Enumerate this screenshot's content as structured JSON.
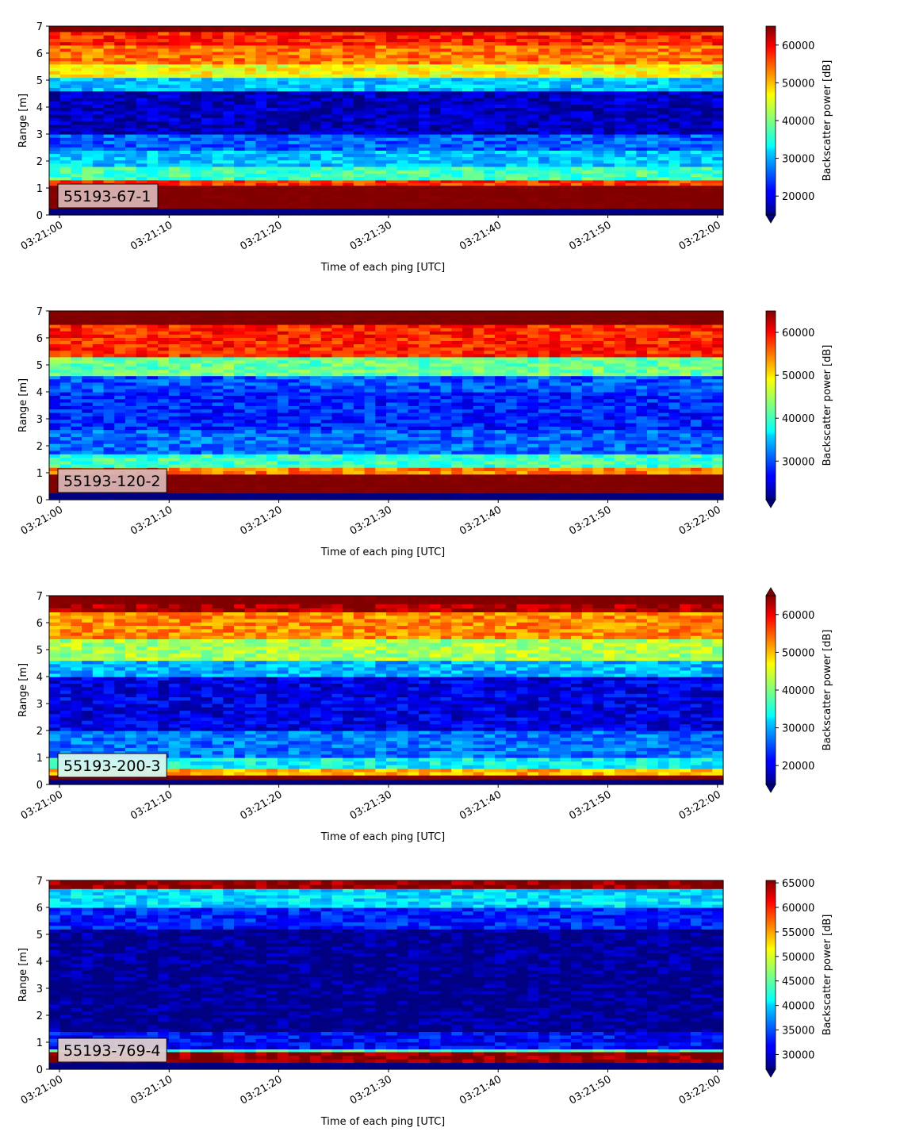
{
  "figure": {
    "colormap": "jet",
    "panel_background": "#ffffff"
  },
  "chart_data": [
    {
      "type": "heatmap",
      "label": "55193-67-1",
      "label_bg": "#d9b3b3",
      "xlabel": "Time of each ping [UTC]",
      "ylabel": "Range [m]",
      "x_ticks": [
        "03:21:00",
        "03:21:10",
        "03:21:20",
        "03:21:30",
        "03:21:40",
        "03:21:50",
        "03:22:00"
      ],
      "y_ticks": [
        "0",
        "1",
        "2",
        "3",
        "4",
        "5",
        "6",
        "7"
      ],
      "ylim": [
        0,
        7
      ],
      "colorbar": {
        "label": "Backscatter power [dB]",
        "vmin": 15000,
        "vmax": 65000,
        "ticks": [
          "20000",
          "30000",
          "40000",
          "50000",
          "60000"
        ],
        "tick_values": [
          20000,
          30000,
          40000,
          50000,
          60000
        ],
        "extend": "min"
      },
      "bands": [
        {
          "range_start": 0.0,
          "range_end": 0.25,
          "value": 15000
        },
        {
          "range_start": 0.25,
          "range_end": 1.1,
          "value": 65000
        },
        {
          "range_start": 1.1,
          "range_end": 1.3,
          "value": 56000
        },
        {
          "range_start": 1.3,
          "range_end": 1.8,
          "value": 37000
        },
        {
          "range_start": 1.8,
          "range_end": 2.4,
          "value": 31000
        },
        {
          "range_start": 2.4,
          "range_end": 3.0,
          "value": 26000
        },
        {
          "range_start": 3.0,
          "range_end": 4.6,
          "value": 18000
        },
        {
          "range_start": 4.6,
          "range_end": 5.1,
          "value": 31000
        },
        {
          "range_start": 5.1,
          "range_end": 5.6,
          "value": 46000
        },
        {
          "range_start": 5.6,
          "range_end": 6.3,
          "value": 53000
        },
        {
          "range_start": 6.3,
          "range_end": 6.8,
          "value": 57000
        },
        {
          "range_start": 6.8,
          "range_end": 7.0,
          "value": 65000
        }
      ]
    },
    {
      "type": "heatmap",
      "label": "55193-120-2",
      "label_bg": "#d9b3b3",
      "xlabel": "Time of each ping [UTC]",
      "ylabel": "Range [m]",
      "x_ticks": [
        "03:21:00",
        "03:21:10",
        "03:21:20",
        "03:21:30",
        "03:21:40",
        "03:21:50",
        "03:22:00"
      ],
      "y_ticks": [
        "0",
        "1",
        "2",
        "3",
        "4",
        "5",
        "6",
        "7"
      ],
      "ylim": [
        0,
        7
      ],
      "colorbar": {
        "label": "Backscatter power [dB]",
        "vmin": 21000,
        "vmax": 65000,
        "ticks": [
          "30000",
          "40000",
          "50000",
          "60000"
        ],
        "tick_values": [
          30000,
          40000,
          50000,
          60000
        ],
        "extend": "min"
      },
      "bands": [
        {
          "range_start": 0.0,
          "range_end": 0.25,
          "value": 21000
        },
        {
          "range_start": 0.25,
          "range_end": 0.95,
          "value": 65000
        },
        {
          "range_start": 0.95,
          "range_end": 1.2,
          "value": 54000
        },
        {
          "range_start": 1.2,
          "range_end": 1.7,
          "value": 40000
        },
        {
          "range_start": 1.7,
          "range_end": 2.6,
          "value": 31000
        },
        {
          "range_start": 2.6,
          "range_end": 4.0,
          "value": 28000
        },
        {
          "range_start": 4.0,
          "range_end": 4.6,
          "value": 30000
        },
        {
          "range_start": 4.6,
          "range_end": 5.3,
          "value": 42000
        },
        {
          "range_start": 5.3,
          "range_end": 6.5,
          "value": 58000
        },
        {
          "range_start": 6.5,
          "range_end": 7.0,
          "value": 65000
        }
      ]
    },
    {
      "type": "heatmap",
      "label": "55193-200-3",
      "label_bg": "#d6f5f0",
      "xlabel": "Time of each ping [UTC]",
      "ylabel": "Range [m]",
      "x_ticks": [
        "03:21:00",
        "03:21:10",
        "03:21:20",
        "03:21:30",
        "03:21:40",
        "03:21:50",
        "03:22:00"
      ],
      "y_ticks": [
        "0",
        "1",
        "2",
        "3",
        "4",
        "5",
        "6",
        "7"
      ],
      "ylim": [
        0,
        7
      ],
      "colorbar": {
        "label": "Backscatter power [dB]",
        "vmin": 15000,
        "vmax": 65000,
        "ticks": [
          "20000",
          "30000",
          "40000",
          "50000",
          "60000"
        ],
        "tick_values": [
          20000,
          30000,
          40000,
          50000,
          60000
        ],
        "extend": "both"
      },
      "bands": [
        {
          "range_start": 0.0,
          "range_end": 0.2,
          "value": 15000
        },
        {
          "range_start": 0.2,
          "range_end": 0.35,
          "value": 65000
        },
        {
          "range_start": 0.35,
          "range_end": 0.6,
          "value": 50000
        },
        {
          "range_start": 0.6,
          "range_end": 1.0,
          "value": 34000
        },
        {
          "range_start": 1.0,
          "range_end": 2.0,
          "value": 27000
        },
        {
          "range_start": 2.0,
          "range_end": 4.0,
          "value": 20000
        },
        {
          "range_start": 4.0,
          "range_end": 4.6,
          "value": 30000
        },
        {
          "range_start": 4.6,
          "range_end": 5.4,
          "value": 42000
        },
        {
          "range_start": 5.4,
          "range_end": 6.4,
          "value": 52000
        },
        {
          "range_start": 6.4,
          "range_end": 6.7,
          "value": 63000
        },
        {
          "range_start": 6.7,
          "range_end": 7.0,
          "value": 65000
        }
      ]
    },
    {
      "type": "heatmap",
      "label": "55193-769-4",
      "label_bg": "#e0cfcf",
      "xlabel": "Time of each ping [UTC]",
      "ylabel": "Range [m]",
      "x_ticks": [
        "03:21:00",
        "03:21:10",
        "03:21:20",
        "03:21:30",
        "03:21:40",
        "03:21:50",
        "03:22:00"
      ],
      "y_ticks": [
        "0",
        "1",
        "2",
        "3",
        "4",
        "5",
        "6",
        "7"
      ],
      "ylim": [
        0,
        7
      ],
      "colorbar": {
        "label": "Backscatter power [dB]",
        "vmin": 27000,
        "vmax": 65500,
        "ticks": [
          "30000",
          "35000",
          "40000",
          "45000",
          "50000",
          "55000",
          "60000",
          "65000"
        ],
        "tick_values": [
          30000,
          35000,
          40000,
          45000,
          50000,
          55000,
          60000,
          65000
        ],
        "extend": "min"
      },
      "bands": [
        {
          "range_start": 0.0,
          "range_end": 0.25,
          "value": 27000
        },
        {
          "range_start": 0.25,
          "range_end": 0.65,
          "value": 65000
        },
        {
          "range_start": 0.65,
          "range_end": 0.75,
          "value": 44000
        },
        {
          "range_start": 0.75,
          "range_end": 1.4,
          "value": 32000
        },
        {
          "range_start": 1.4,
          "range_end": 5.2,
          "value": 27500
        },
        {
          "range_start": 5.2,
          "range_end": 6.0,
          "value": 33000
        },
        {
          "range_start": 6.0,
          "range_end": 6.7,
          "value": 40000
        },
        {
          "range_start": 6.7,
          "range_end": 7.0,
          "value": 65000
        }
      ]
    }
  ]
}
